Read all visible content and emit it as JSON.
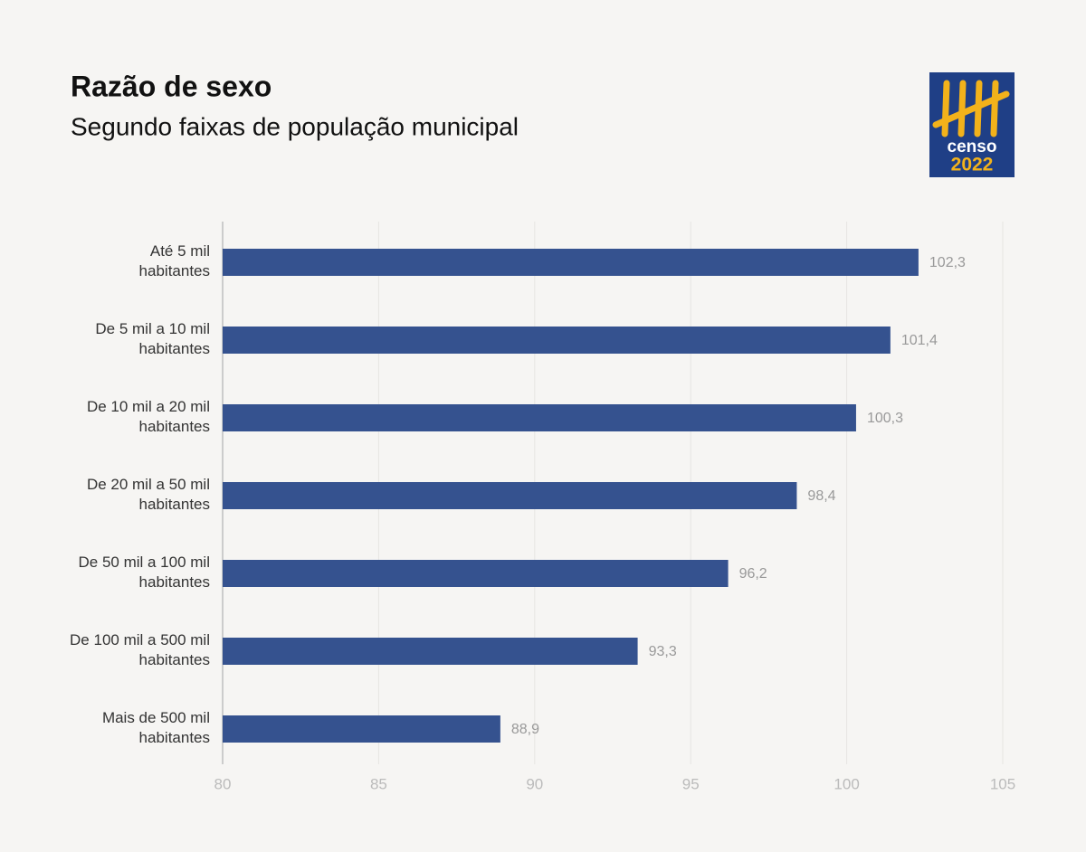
{
  "chart_data": {
    "type": "bar",
    "orientation": "horizontal",
    "title": "Razão de sexo",
    "subtitle": "Segundo faixas de população municipal",
    "categories": [
      "Até 5 mil\nhabitantes",
      "De 5 mil a 10 mil\nhabitantes",
      "De 10 mil a 20 mil\nhabitantes",
      "De 20 mil a 50 mil\nhabitantes",
      "De 50 mil a 100 mil\nhabitantes",
      "De 100 mil a 500 mil\nhabitantes",
      "Mais de 500 mil\nhabitantes"
    ],
    "values": [
      102.3,
      101.4,
      100.3,
      98.4,
      96.2,
      93.3,
      88.9
    ],
    "value_labels": [
      "102,3",
      "101,4",
      "100,3",
      "98,4",
      "96,2",
      "93,3",
      "88,9"
    ],
    "color": "#35528f",
    "xlim": [
      80,
      105
    ],
    "xticks": [
      80,
      85,
      90,
      95,
      100,
      105
    ],
    "grid": true
  },
  "logo": {
    "line1": "censo",
    "line2": "2022"
  }
}
